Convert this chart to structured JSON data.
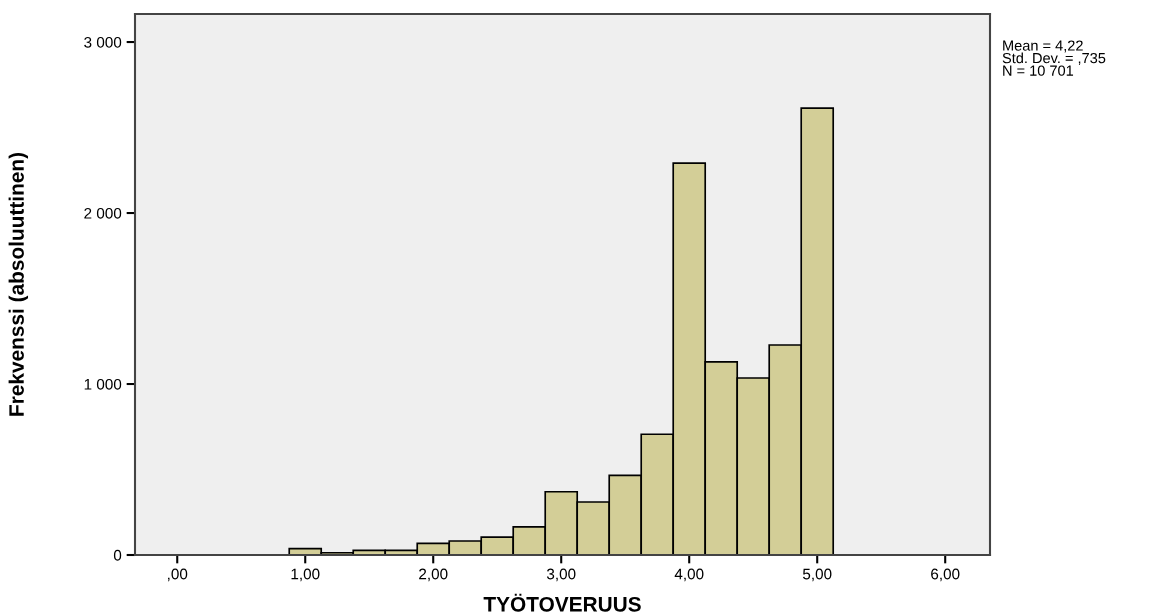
{
  "chart_data": {
    "type": "histogram",
    "xlabel": "TYÖTOVERUUS",
    "ylabel": "Frekvenssi (absoluuttinen)",
    "bins": [
      0.875,
      1.125,
      1.375,
      1.625,
      1.875,
      2.125,
      2.375,
      2.625,
      2.875,
      3.125,
      3.375,
      3.625,
      3.875,
      4.125,
      4.375,
      4.625,
      4.875,
      5.125
    ],
    "values": [
      37,
      13,
      27,
      27,
      68,
      82,
      105,
      164,
      370,
      310,
      466,
      706,
      2292,
      1129,
      1035,
      1228,
      2614
    ],
    "color": "#d3ce97",
    "xlim": [
      -0.33,
      6.35
    ],
    "xticks": [
      {
        "value": 0,
        "label": ",00"
      },
      {
        "value": 1,
        "label": "1,00"
      },
      {
        "value": 2,
        "label": "2,00"
      },
      {
        "value": 3,
        "label": "3,00"
      },
      {
        "value": 4,
        "label": "4,00"
      },
      {
        "value": 5,
        "label": "5,00"
      },
      {
        "value": 6,
        "label": "6,00"
      }
    ],
    "ylim": [
      0,
      3164
    ],
    "yticks": [
      {
        "value": 0,
        "label": "0"
      },
      {
        "value": 1000,
        "label": "1 000"
      },
      {
        "value": 2000,
        "label": "2 000"
      },
      {
        "value": 3000,
        "label": "3 000"
      }
    ],
    "grid": false,
    "annotations": [
      "Mean = 4,22\nStd. Dev. = ,735\nN = 10 701"
    ]
  }
}
